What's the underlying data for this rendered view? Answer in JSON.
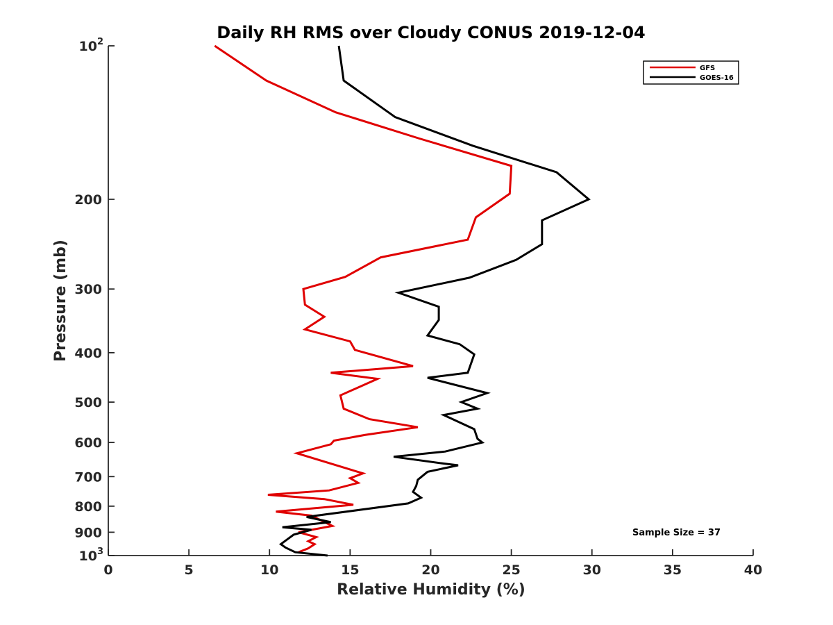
{
  "chart_data": {
    "type": "line",
    "title": "Daily RH RMS over Cloudy CONUS 2019-12-04",
    "xlabel": "Relative Humidity (%)",
    "ylabel": "Pressure (mb)",
    "xlim": [
      0,
      40
    ],
    "ylim": [
      100,
      1000
    ],
    "y_scale": "log",
    "y_reversed": true,
    "grid": false,
    "legend_position": "top-right",
    "x_ticks": [
      {
        "value": 0,
        "label": "0"
      },
      {
        "value": 5,
        "label": "5"
      },
      {
        "value": 10,
        "label": "10"
      },
      {
        "value": 15,
        "label": "15"
      },
      {
        "value": 20,
        "label": "20"
      },
      {
        "value": 25,
        "label": "25"
      },
      {
        "value": 30,
        "label": "30"
      },
      {
        "value": 35,
        "label": "35"
      },
      {
        "value": 40,
        "label": "40"
      }
    ],
    "y_ticks": [
      {
        "value": 100,
        "base": "10",
        "exp": "2",
        "label": ""
      },
      {
        "value": 200,
        "base": "",
        "exp": "",
        "label": "200"
      },
      {
        "value": 300,
        "base": "",
        "exp": "",
        "label": "300"
      },
      {
        "value": 400,
        "base": "",
        "exp": "",
        "label": "400"
      },
      {
        "value": 500,
        "base": "",
        "exp": "",
        "label": "500"
      },
      {
        "value": 600,
        "base": "",
        "exp": "",
        "label": "600"
      },
      {
        "value": 700,
        "base": "",
        "exp": "",
        "label": "700"
      },
      {
        "value": 800,
        "base": "",
        "exp": "",
        "label": "800"
      },
      {
        "value": 900,
        "base": "",
        "exp": "",
        "label": "900"
      },
      {
        "value": 1000,
        "base": "10",
        "exp": "3",
        "label": ""
      }
    ],
    "series": [
      {
        "name": "GFS",
        "color": "#e00000",
        "rh": [
          6.6,
          9.8,
          14.1,
          19.3,
          25.0,
          24.9,
          22.8,
          22.3,
          16.9,
          14.7,
          12.1,
          12.2,
          13.4,
          12.2,
          15.0,
          15.3,
          18.9,
          13.8,
          16.7,
          14.4,
          14.6,
          16.2,
          19.2,
          15.9,
          14.0,
          13.8,
          11.7,
          15.8,
          15.0,
          15.5,
          13.7,
          9.9,
          13.4,
          15.2,
          10.4,
          12.6,
          13.9,
          11.8,
          12.9,
          12.4,
          12.8,
          12.4,
          11.8
        ],
        "pressure": [
          100,
          117,
          135,
          152,
          172,
          195,
          217,
          240,
          260,
          284,
          300,
          322,
          340,
          360,
          380,
          395,
          425,
          438,
          450,
          485,
          515,
          540,
          560,
          580,
          595,
          605,
          630,
          690,
          705,
          720,
          745,
          760,
          775,
          795,
          820,
          835,
          875,
          900,
          920,
          937,
          950,
          968,
          985
        ]
      },
      {
        "name": "GOES-16",
        "color": "#000000",
        "rh": [
          14.3,
          14.6,
          17.8,
          22.6,
          27.8,
          29.8,
          26.9,
          26.9,
          25.3,
          22.4,
          18.0,
          20.5,
          20.5,
          19.8,
          21.8,
          22.7,
          22.3,
          19.8,
          23.5,
          21.9,
          22.9,
          20.8,
          22.7,
          22.9,
          23.2,
          20.9,
          17.7,
          20.8,
          21.7,
          19.8,
          19.2,
          19.1,
          18.9,
          19.4,
          18.6,
          12.3,
          13.8,
          10.8,
          12.6,
          11.5,
          10.7,
          11.0,
          11.6,
          13.6
        ],
        "pressure": [
          100,
          117,
          138,
          157,
          177,
          200,
          220,
          245,
          263,
          285,
          305,
          325,
          345,
          370,
          385,
          403,
          438,
          448,
          480,
          500,
          515,
          530,
          565,
          590,
          600,
          625,
          640,
          660,
          665,
          685,
          710,
          730,
          750,
          770,
          790,
          840,
          860,
          880,
          890,
          910,
          950,
          965,
          985,
          1000
        ]
      }
    ],
    "annotation": "Sample Size = 37"
  }
}
